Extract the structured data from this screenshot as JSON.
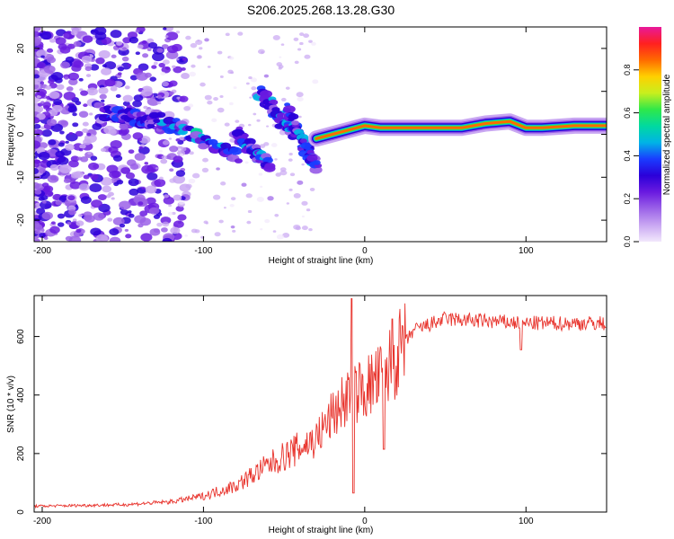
{
  "page_title": "S206.2025.268.13.28.G30",
  "colors": {
    "snr_line": "#e8332c",
    "axis": "#000000",
    "background": "#ffffff",
    "colormap": [
      "#f2e8fc",
      "#c9a7f2",
      "#9b62e8",
      "#6a1ae0",
      "#2b00d9",
      "#1a3cff",
      "#00b4e6",
      "#00d9a0",
      "#2ee84a",
      "#c8ef1e",
      "#ffd000",
      "#ff6a00",
      "#ff2020",
      "#e8189a"
    ]
  },
  "chart_data": [
    {
      "type": "heatmap",
      "title": "S206.2025.268.13.28.G30",
      "xlabel": "Height of straight line (km)",
      "ylabel": "Frequency (Hz)",
      "xlim": [
        -205,
        150
      ],
      "ylim": [
        -25,
        25
      ],
      "x_ticks": [
        -200,
        -100,
        0,
        100
      ],
      "y_ticks": [
        20,
        10,
        0,
        -10,
        -20
      ],
      "colorbar": {
        "label": "Normalized spectral amplitude",
        "range": [
          0,
          1
        ],
        "ticks": [
          0.0,
          0.2,
          0.4,
          0.6,
          0.8
        ]
      },
      "ridge": [
        {
          "x": -30,
          "y": -1
        },
        {
          "x": -20,
          "y": 0
        },
        {
          "x": -10,
          "y": 1
        },
        {
          "x": 0,
          "y": 2
        },
        {
          "x": 10,
          "y": 1.5
        },
        {
          "x": 20,
          "y": 1.5
        },
        {
          "x": 40,
          "y": 1.5
        },
        {
          "x": 60,
          "y": 1.5
        },
        {
          "x": 75,
          "y": 2.5
        },
        {
          "x": 90,
          "y": 3
        },
        {
          "x": 100,
          "y": 1.5
        },
        {
          "x": 110,
          "y": 1.5
        },
        {
          "x": 130,
          "y": 2
        },
        {
          "x": 150,
          "y": 2
        }
      ],
      "features": [
        {
          "x0": -130,
          "x1": -80,
          "y0": 4,
          "y1": -5,
          "intensity": 0.4
        },
        {
          "x0": -65,
          "x1": -45,
          "y0": 10,
          "y1": 0,
          "intensity": 0.35
        },
        {
          "x0": -48,
          "x1": -30,
          "y0": 6,
          "y1": -8,
          "intensity": 0.35
        },
        {
          "x0": -80,
          "x1": -60,
          "y0": 0,
          "y1": -7,
          "intensity": 0.35
        },
        {
          "x0": -160,
          "x1": -130,
          "y0": 5,
          "y1": 3,
          "intensity": 0.3
        }
      ]
    },
    {
      "type": "line",
      "xlabel": "Height of straight line (km)",
      "ylabel": "SNR (10 * v/v)",
      "xlim": [
        -205,
        150
      ],
      "ylim": [
        0,
        740
      ],
      "x_ticks": [
        -200,
        -100,
        0,
        100
      ],
      "y_ticks": [
        0,
        200,
        400,
        600
      ],
      "envelope": [
        {
          "x": -205,
          "y": 20
        },
        {
          "x": -150,
          "y": 25
        },
        {
          "x": -120,
          "y": 35
        },
        {
          "x": -100,
          "y": 55
        },
        {
          "x": -80,
          "y": 90
        },
        {
          "x": -60,
          "y": 160
        },
        {
          "x": -40,
          "y": 220
        },
        {
          "x": -30,
          "y": 250
        },
        {
          "x": -20,
          "y": 330
        },
        {
          "x": -10,
          "y": 400
        },
        {
          "x": 0,
          "y": 420
        },
        {
          "x": 10,
          "y": 460
        },
        {
          "x": 20,
          "y": 530
        },
        {
          "x": 30,
          "y": 620
        },
        {
          "x": 50,
          "y": 660
        },
        {
          "x": 100,
          "y": 645
        },
        {
          "x": 150,
          "y": 645
        }
      ],
      "spikes": [
        {
          "x": -8,
          "y": 730
        },
        {
          "x": -7,
          "y": 65
        },
        {
          "x": 12,
          "y": 690
        },
        {
          "x": 12,
          "y": 215
        },
        {
          "x": 17,
          "y": 660
        },
        {
          "x": 97,
          "y": 555
        }
      ]
    }
  ]
}
